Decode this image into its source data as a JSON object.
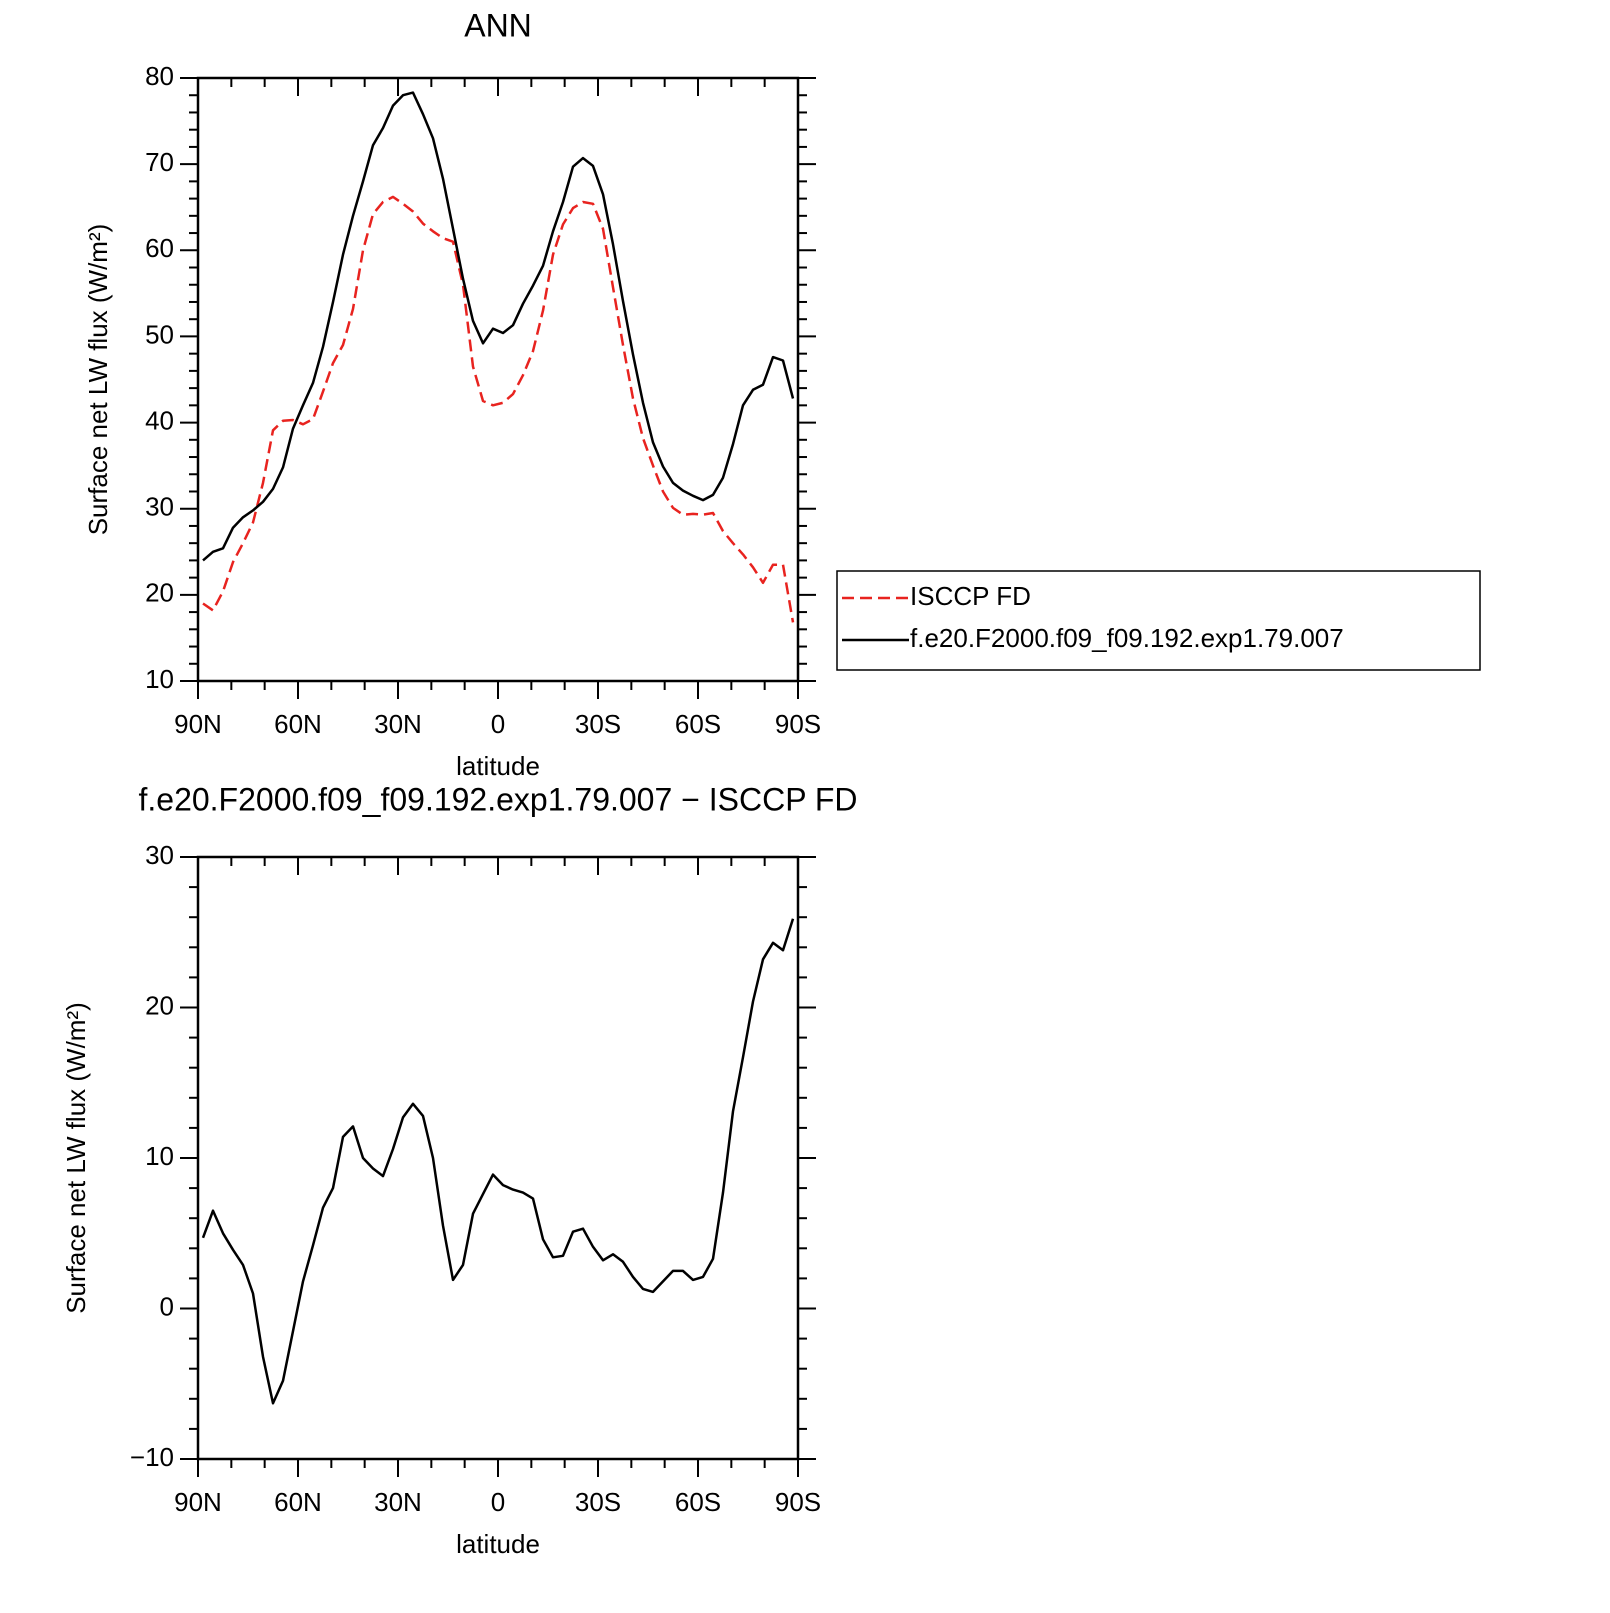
{
  "chart_data": [
    {
      "type": "line",
      "title": "ANN",
      "ylabel": "Surface net LW flux (W/m²)",
      "xlabel": "latitude",
      "x": [
        88.5,
        85.5,
        82.5,
        79.5,
        76.5,
        73.5,
        70.5,
        67.5,
        64.5,
        61.5,
        58.5,
        55.5,
        52.5,
        49.5,
        46.5,
        43.5,
        40.5,
        37.5,
        34.5,
        31.5,
        28.5,
        25.5,
        22.5,
        19.5,
        16.5,
        13.5,
        10.5,
        7.5,
        4.5,
        1.5,
        -1.5,
        -4.5,
        -7.5,
        -10.5,
        -13.5,
        -16.5,
        -19.5,
        -22.5,
        -25.5,
        -28.5,
        -31.5,
        -34.5,
        -37.5,
        -40.5,
        -43.5,
        -46.5,
        -49.5,
        -52.5,
        -55.5,
        -58.5,
        -61.5,
        -64.5,
        -67.5,
        -70.5,
        -73.5,
        -76.5,
        -79.5,
        -82.5,
        -85.5,
        -88.5
      ],
      "xlim": [
        90,
        -90
      ],
      "xticks": [
        {
          "value": 90,
          "label": "90N"
        },
        {
          "value": 60,
          "label": "60N"
        },
        {
          "value": 30,
          "label": "30N"
        },
        0,
        {
          "value": -30,
          "label": "30S"
        },
        {
          "value": -60,
          "label": "60S"
        },
        {
          "value": -90,
          "label": "90S"
        }
      ],
      "ylim": [
        10,
        80
      ],
      "yticks": [
        10,
        20,
        30,
        40,
        50,
        60,
        70,
        80
      ],
      "legend": "right",
      "series": [
        {
          "name": "ISCCP FD",
          "color": "#e8231f",
          "dash": true,
          "values": [
            19.0,
            18.2,
            20.4,
            23.8,
            26.0,
            28.4,
            33.0,
            39.1,
            40.2,
            40.3,
            39.8,
            40.4,
            43.6,
            46.9,
            49.0,
            53.2,
            60.0,
            64.2,
            65.6,
            66.2,
            65.4,
            64.5,
            63.1,
            62.2,
            61.4,
            61.0,
            56.0,
            46.5,
            42.5,
            42.0,
            42.3,
            43.3,
            45.5,
            48.3,
            53.0,
            59.5,
            63.0,
            64.9,
            65.6,
            65.4,
            62.5,
            55.7,
            49.0,
            42.8,
            38.2,
            35.0,
            32.0,
            30.1,
            29.3,
            29.4,
            29.3,
            29.5,
            27.4,
            26.0,
            24.7,
            23.2,
            21.4,
            23.5,
            23.5,
            16.8
          ]
        },
        {
          "name": "f.e20.F2000.f09_f09.192.exp1.79.007",
          "color": "#000000",
          "dash": false,
          "values": [
            24.0,
            25.0,
            25.4,
            27.8,
            29.0,
            29.8,
            30.8,
            32.3,
            34.8,
            39.3,
            42.0,
            44.6,
            48.8,
            54.0,
            59.5,
            64.0,
            68.0,
            72.2,
            74.2,
            76.8,
            78.0,
            78.3,
            75.8,
            73.0,
            68.3,
            62.5,
            56.7,
            51.8,
            49.2,
            50.9,
            50.4,
            51.3,
            53.8,
            55.9,
            58.2,
            62.2,
            65.6,
            69.7,
            70.7,
            69.8,
            66.5,
            60.7,
            54.1,
            47.9,
            42.3,
            37.7,
            34.9,
            33.0,
            32.1,
            31.5,
            31.0,
            31.6,
            33.6,
            37.5,
            42.0,
            43.8,
            44.4,
            47.6,
            47.2,
            42.8
          ]
        }
      ]
    },
    {
      "type": "line",
      "title": "f.e20.F2000.f09_f09.192.exp1.79.007 − ISCCP FD",
      "ylabel": "Surface net LW flux (W/m²)",
      "xlabel": "latitude",
      "x": [
        88.5,
        85.5,
        82.5,
        79.5,
        76.5,
        73.5,
        70.5,
        67.5,
        64.5,
        61.5,
        58.5,
        55.5,
        52.5,
        49.5,
        46.5,
        43.5,
        40.5,
        37.5,
        34.5,
        31.5,
        28.5,
        25.5,
        22.5,
        19.5,
        16.5,
        13.5,
        10.5,
        7.5,
        4.5,
        1.5,
        -1.5,
        -4.5,
        -7.5,
        -10.5,
        -13.5,
        -16.5,
        -19.5,
        -22.5,
        -25.5,
        -28.5,
        -31.5,
        -34.5,
        -37.5,
        -40.5,
        -43.5,
        -46.5,
        -49.5,
        -52.5,
        -55.5,
        -58.5,
        -61.5,
        -64.5,
        -67.5,
        -70.5,
        -73.5,
        -76.5,
        -79.5,
        -82.5,
        -85.5,
        -88.5
      ],
      "xlim": [
        90,
        -90
      ],
      "xticks": [
        {
          "value": 90,
          "label": "90N"
        },
        {
          "value": 60,
          "label": "60N"
        },
        {
          "value": 30,
          "label": "30N"
        },
        0,
        {
          "value": -30,
          "label": "30S"
        },
        {
          "value": -60,
          "label": "60S"
        },
        {
          "value": -90,
          "label": "90S"
        }
      ],
      "ylim": [
        -10,
        30
      ],
      "yticks": [
        {
          "value": -10,
          "label": "−10"
        },
        0,
        10,
        20,
        30
      ],
      "color": "#000000",
      "values": [
        4.7,
        6.5,
        5.0,
        3.9,
        2.9,
        1.0,
        -3.2,
        -6.3,
        -4.8,
        -1.5,
        1.8,
        4.2,
        6.7,
        8.0,
        11.4,
        12.1,
        10.0,
        9.3,
        8.8,
        10.6,
        12.7,
        13.6,
        12.8,
        10.0,
        5.5,
        1.9,
        2.9,
        6.3,
        7.6,
        8.9,
        8.2,
        7.9,
        7.7,
        7.3,
        4.6,
        3.4,
        3.5,
        5.1,
        5.3,
        4.1,
        3.2,
        3.6,
        3.1,
        2.1,
        1.3,
        1.1,
        1.8,
        2.5,
        2.5,
        1.9,
        2.1,
        3.3,
        7.7,
        13.1,
        16.7,
        20.4,
        23.2,
        24.3,
        23.8,
        25.9
      ]
    }
  ]
}
